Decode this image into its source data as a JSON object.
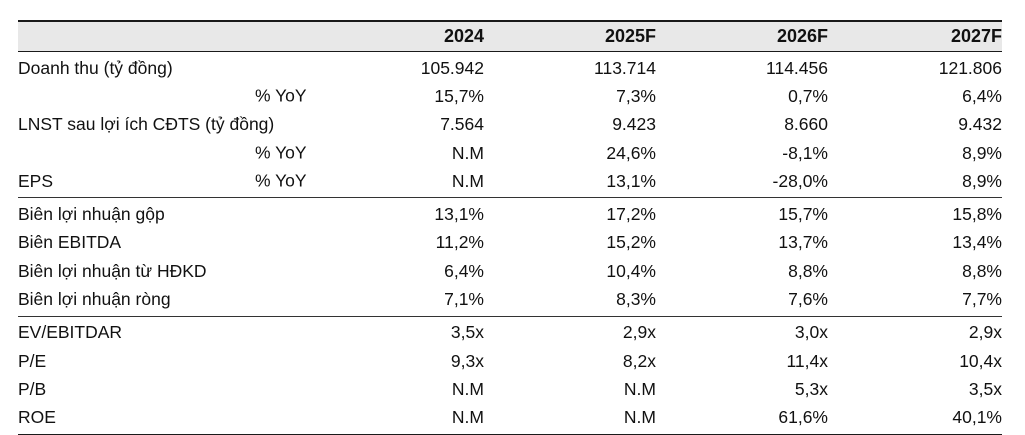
{
  "header": {
    "label": "",
    "years": [
      "2024",
      "2025F",
      "2026F",
      "2027F"
    ]
  },
  "groups": [
    {
      "rows": [
        {
          "label": "Doanh thu (tỷ đồng)",
          "sub": "",
          "values": [
            "105.942",
            "113.714",
            "114.456",
            "121.806"
          ]
        },
        {
          "label": "",
          "sub": "% YoY",
          "values": [
            "15,7%",
            "7,3%",
            "0,7%",
            "6,4%"
          ]
        },
        {
          "label": "LNST sau lợi ích CĐTS (tỷ đồng)",
          "sub": "",
          "values": [
            "7.564",
            "9.423",
            "8.660",
            "9.432"
          ]
        },
        {
          "label": "",
          "sub": "% YoY",
          "values": [
            "N.M",
            "24,6%",
            "-8,1%",
            "8,9%"
          ]
        },
        {
          "label": "EPS",
          "sub": "% YoY",
          "values": [
            "N.M",
            "13,1%",
            "-28,0%",
            "8,9%"
          ]
        }
      ]
    },
    {
      "rows": [
        {
          "label": "Biên lợi nhuận gộp",
          "sub": "",
          "values": [
            "13,1%",
            "17,2%",
            "15,7%",
            "15,8%"
          ]
        },
        {
          "label": "Biên EBITDA",
          "sub": "",
          "values": [
            "11,2%",
            "15,2%",
            "13,7%",
            "13,4%"
          ]
        },
        {
          "label": "Biên lợi nhuận từ HĐKD",
          "sub": "",
          "values": [
            "6,4%",
            "10,4%",
            "8,8%",
            "8,8%"
          ]
        },
        {
          "label": "Biên lợi nhuận ròng",
          "sub": "",
          "values": [
            "7,1%",
            "8,3%",
            "7,6%",
            "7,7%"
          ]
        }
      ]
    },
    {
      "rows": [
        {
          "label": "EV/EBITDAR",
          "sub": "",
          "values": [
            "3,5x",
            "2,9x",
            "3,0x",
            "2,9x"
          ]
        },
        {
          "label": "P/E",
          "sub": "",
          "values": [
            "9,3x",
            "8,2x",
            "11,4x",
            "10,4x"
          ]
        },
        {
          "label": "P/B",
          "sub": "",
          "values": [
            "N.M",
            "N.M",
            "5,3x",
            "3,5x"
          ]
        },
        {
          "label": "ROE",
          "sub": "",
          "values": [
            "N.M",
            "N.M",
            "61,6%",
            "40,1%"
          ]
        }
      ]
    }
  ]
}
